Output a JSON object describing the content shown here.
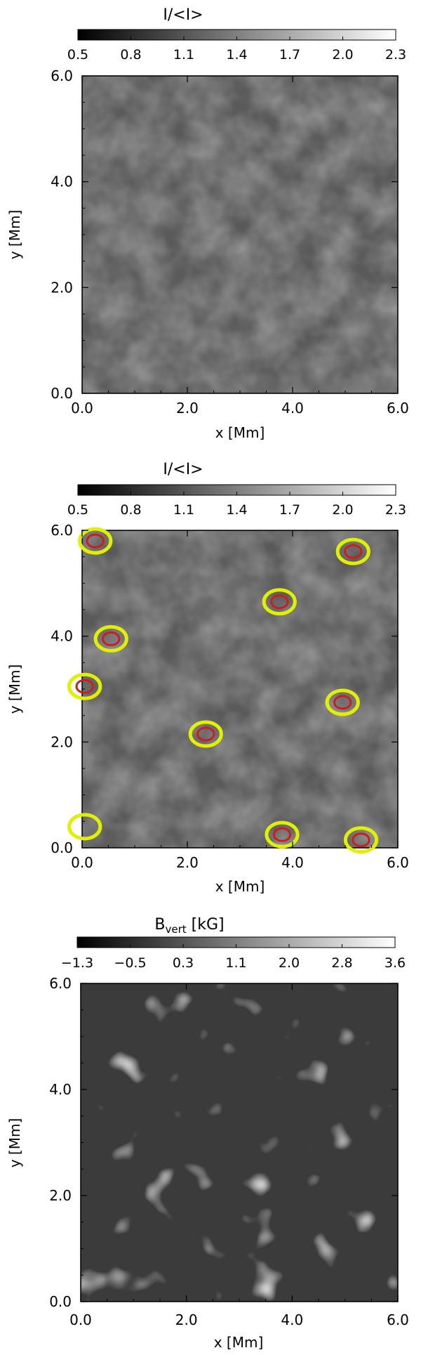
{
  "chart_data": [
    {
      "type": "heatmap",
      "colorbar": {
        "label": "I/<I>",
        "label_sub": "",
        "label_rest": "",
        "ticks": [
          "0.5",
          "0.8",
          "1.1",
          "1.4",
          "1.7",
          "2.0",
          "2.3"
        ],
        "range": [
          0.5,
          2.3
        ],
        "colormap": "grayscale"
      },
      "xlabel": "x [Mm]",
      "ylabel": "y [Mm]",
      "xlim": [
        0,
        6
      ],
      "ylim": [
        0,
        6
      ],
      "xticks": [
        "0.0",
        "2.0",
        "4.0",
        "6.0"
      ],
      "yticks": [
        "0.0",
        "2.0",
        "4.0",
        "6.0"
      ],
      "contours": []
    },
    {
      "type": "heatmap",
      "colorbar": {
        "label": "I/<I>",
        "label_sub": "",
        "label_rest": "",
        "ticks": [
          "0.5",
          "0.8",
          "1.1",
          "1.4",
          "1.7",
          "2.0",
          "2.3"
        ],
        "range": [
          0.5,
          2.3
        ],
        "colormap": "grayscale"
      },
      "xlabel": "x [Mm]",
      "ylabel": "y [Mm]",
      "xlim": [
        0,
        6
      ],
      "ylim": [
        0,
        6
      ],
      "xticks": [
        "0.0",
        "2.0",
        "4.0",
        "6.0"
      ],
      "yticks": [
        "0.0",
        "2.0",
        "4.0",
        "6.0"
      ],
      "contours": [
        {
          "color": "#e0f000",
          "regions": [
            [
              0.25,
              5.8
            ],
            [
              0.55,
              3.95
            ],
            [
              0.05,
              3.05
            ],
            [
              2.35,
              2.15
            ],
            [
              3.75,
              4.65
            ],
            [
              4.95,
              2.75
            ],
            [
              5.15,
              5.6
            ],
            [
              3.8,
              0.25
            ],
            [
              5.3,
              0.15
            ],
            [
              0.05,
              0.4
            ]
          ]
        },
        {
          "color": "#cc1e1e",
          "regions": [
            [
              0.25,
              5.8
            ],
            [
              0.55,
              3.95
            ],
            [
              0.05,
              3.05
            ],
            [
              2.35,
              2.15
            ],
            [
              3.75,
              4.65
            ],
            [
              4.95,
              2.75
            ],
            [
              5.15,
              5.6
            ],
            [
              3.8,
              0.25
            ],
            [
              5.3,
              0.15
            ]
          ]
        }
      ]
    },
    {
      "type": "heatmap",
      "colorbar": {
        "label": "B",
        "label_sub": "vert",
        "label_rest": " [kG]",
        "ticks": [
          "−1.3",
          "−0.5",
          "0.3",
          "1.1",
          "2.0",
          "2.8",
          "3.6"
        ],
        "range": [
          -1.3,
          3.6
        ],
        "colormap": "grayscale"
      },
      "xlabel": "x [Mm]",
      "ylabel": "y [Mm]",
      "xlim": [
        0,
        6
      ],
      "ylim": [
        0,
        6
      ],
      "xticks": [
        "0.0",
        "2.0",
        "4.0",
        "6.0"
      ],
      "yticks": [
        "0.0",
        "2.0",
        "4.0",
        "6.0"
      ],
      "contours": []
    }
  ]
}
